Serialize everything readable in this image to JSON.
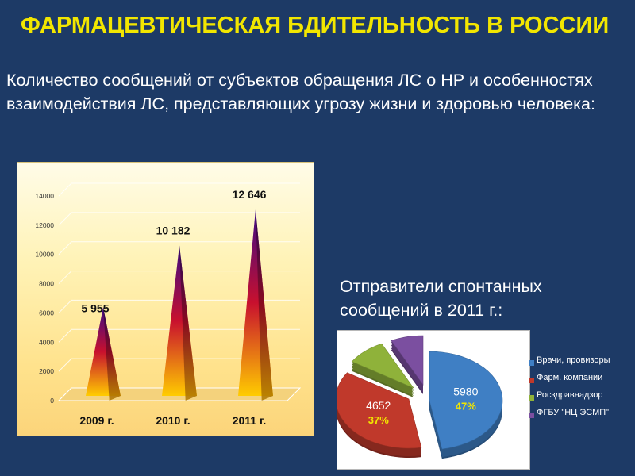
{
  "slide": {
    "title": "ФАРМАЦЕВТИЧЕСКАЯ БДИТЕЛЬНОСТЬ В РОССИИ",
    "subtitle": "Количество сообщений от субъектов обращения ЛС о НР и особенностях взаимодействия ЛС, представляющих угрозу жизни и здоровью человека:",
    "pie_caption": "Отправители спонтанных сообщений в 2011 г.:"
  },
  "chart_data": [
    {
      "type": "bar",
      "style": "3d-cone",
      "categories": [
        "2009 г.",
        "2010 г.",
        "2011 г."
      ],
      "values": [
        5955,
        10182,
        12646
      ],
      "data_labels": [
        "5 955",
        "10 182",
        "12 646"
      ],
      "ylim": [
        0,
        14000
      ],
      "yticks": [
        0,
        2000,
        4000,
        6000,
        8000,
        10000,
        12000,
        14000
      ],
      "grid": true,
      "legend": "none",
      "colors": {
        "top": "#3a0a86",
        "mid": "#c8102e",
        "base": "#ffcc00"
      }
    },
    {
      "type": "pie",
      "style": "3d-exploded",
      "slices": [
        {
          "label": "Врачи, провизоры",
          "value": 5980,
          "percent": "47%",
          "color": "#3f7fc4"
        },
        {
          "label": "Фарм. компании",
          "value": 4652,
          "percent": "37%",
          "color": "#c0392b"
        },
        {
          "label": "Росздравнадзор",
          "value": null,
          "percent": null,
          "color": "#8fb23a"
        },
        {
          "label": "ФГБУ \"НЦ ЭСМП\"",
          "value": null,
          "percent": null,
          "color": "#7b4fa0"
        }
      ],
      "legend": "right",
      "legend_overlap_labels": [
        "Врачи, провизоры",
        "Фарм. компании",
        "Росздравнадзор",
        "ФГБУ \"НЦ ЭСМП\""
      ],
      "colors": {
        "value_label": "#ffffff",
        "percent_label": "#f2e600"
      }
    }
  ]
}
